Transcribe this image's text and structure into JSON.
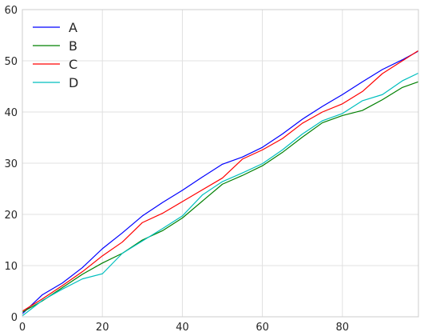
{
  "chart_data": {
    "type": "line",
    "title": "",
    "xlabel": "",
    "ylabel": "",
    "xlim": [
      0,
      99
    ],
    "ylim": [
      0,
      60
    ],
    "xticks": [
      0,
      20,
      40,
      60,
      80
    ],
    "yticks": [
      0,
      10,
      20,
      30,
      40,
      50,
      60
    ],
    "grid": true,
    "legend_position": "top-left",
    "x": [
      0,
      5,
      10,
      15,
      20,
      25,
      30,
      35,
      40,
      45,
      50,
      55,
      60,
      65,
      70,
      75,
      80,
      85,
      90,
      95,
      99
    ],
    "series": [
      {
        "name": "A",
        "color": "#0000ff",
        "values": [
          0.6,
          4.3,
          6.6,
          9.6,
          13.3,
          16.4,
          19.7,
          22.3,
          24.7,
          27.3,
          29.8,
          31.2,
          33.1,
          35.7,
          38.6,
          41.1,
          43.4,
          45.9,
          48.3,
          50.2,
          51.9
        ]
      },
      {
        "name": "B",
        "color": "#008000",
        "values": [
          0.9,
          3.1,
          5.7,
          8.3,
          10.5,
          12.4,
          15.0,
          16.8,
          19.3,
          22.6,
          25.9,
          27.6,
          29.5,
          32.1,
          35.1,
          37.9,
          39.3,
          40.3,
          42.4,
          44.8,
          45.9
        ]
      },
      {
        "name": "C",
        "color": "#ff0000",
        "values": [
          1.1,
          3.5,
          6.1,
          8.8,
          11.9,
          14.6,
          18.4,
          20.2,
          22.5,
          24.8,
          27.1,
          30.8,
          32.6,
          34.8,
          37.8,
          40.0,
          41.6,
          44.0,
          47.5,
          50.0,
          52.0
        ]
      },
      {
        "name": "D",
        "color": "#00bfbf",
        "values": [
          0.2,
          3.2,
          5.4,
          7.4,
          8.4,
          12.4,
          14.8,
          17.2,
          19.7,
          23.8,
          26.4,
          28.1,
          29.9,
          32.6,
          35.7,
          38.3,
          39.7,
          42.2,
          43.4,
          46.1,
          47.6
        ]
      }
    ]
  }
}
